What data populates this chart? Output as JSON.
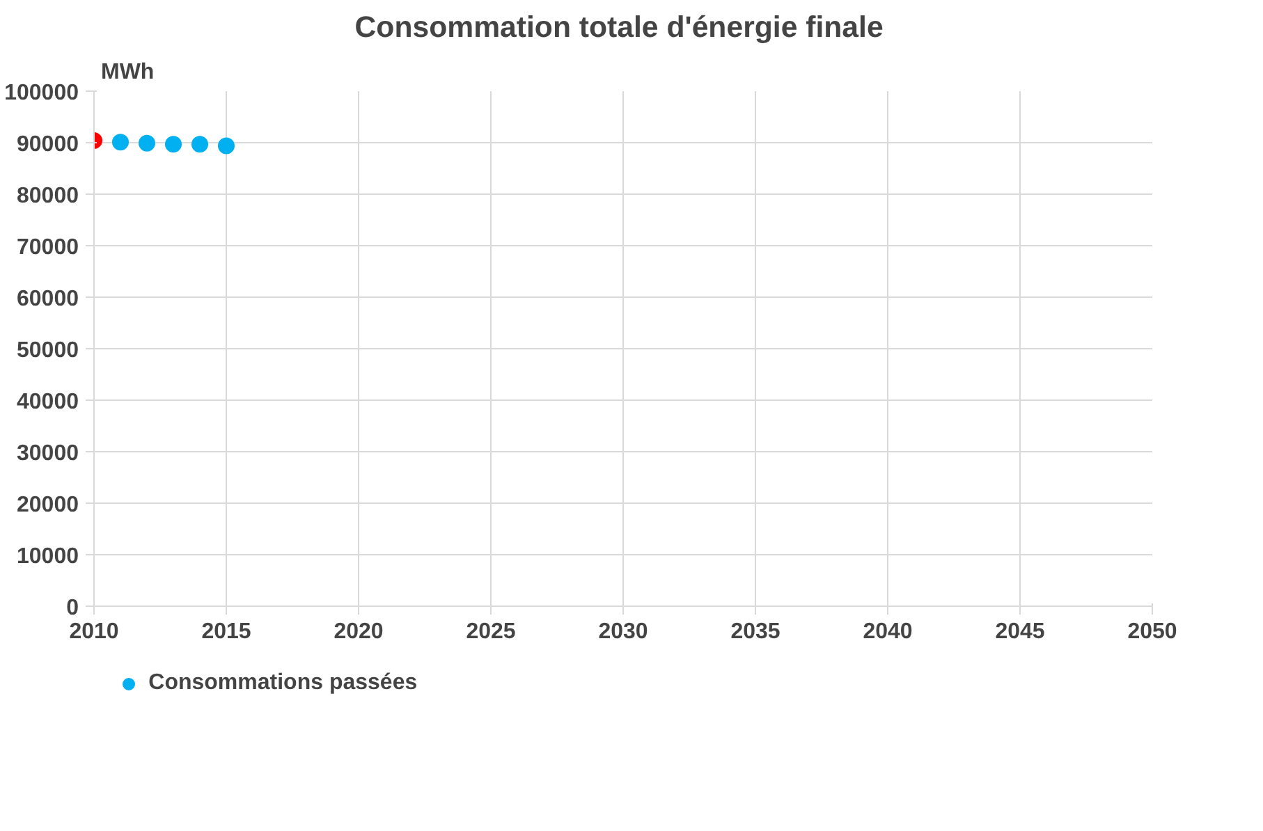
{
  "chart_data": {
    "type": "scatter",
    "title": "Consommation  totale d'énergie finale",
    "ylabel": "MWh",
    "x": [
      2010,
      2011,
      2012,
      2013,
      2014,
      2015
    ],
    "series": [
      {
        "name": "Consommations passées",
        "color": "#00b0f0",
        "colors": [
          "#ff0000",
          "#00b0f0",
          "#00b0f0",
          "#00b0f0",
          "#00b0f0",
          "#00b0f0"
        ],
        "values": [
          90400,
          90100,
          89900,
          89700,
          89700,
          89400
        ]
      }
    ],
    "xlim": [
      2010,
      2050
    ],
    "xticks": [
      2010,
      2015,
      2020,
      2025,
      2030,
      2035,
      2040,
      2045,
      2050
    ],
    "ylim": [
      0,
      100000
    ],
    "yticks": [
      0,
      10000,
      20000,
      30000,
      40000,
      50000,
      60000,
      70000,
      80000,
      90000,
      100000
    ],
    "grid": true,
    "legend": "bottom",
    "marker": "circle"
  }
}
